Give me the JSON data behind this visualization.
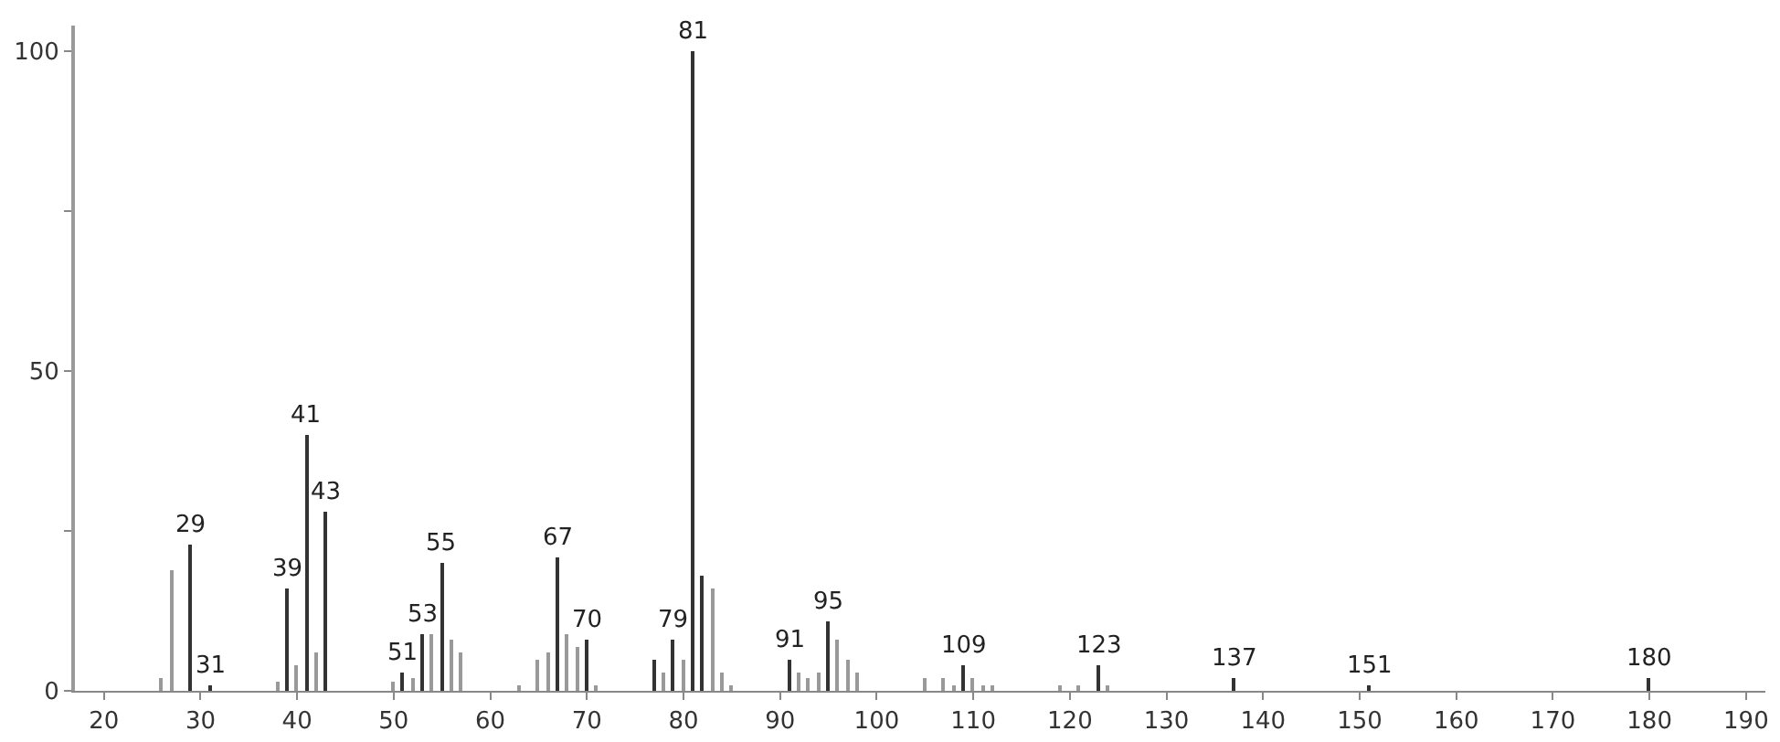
{
  "chart_data": {
    "type": "bar",
    "x": [
      26,
      27,
      29,
      31,
      38,
      39,
      40,
      41,
      42,
      43,
      50,
      51,
      52,
      53,
      54,
      55,
      56,
      57,
      63,
      65,
      66,
      67,
      68,
      69,
      70,
      71,
      77,
      78,
      79,
      80,
      81,
      82,
      83,
      84,
      85,
      91,
      92,
      93,
      94,
      95,
      96,
      97,
      98,
      105,
      107,
      108,
      109,
      110,
      111,
      112,
      119,
      121,
      123,
      124,
      137,
      151,
      180
    ],
    "values": [
      2,
      19,
      23,
      1,
      1.5,
      16,
      4,
      40,
      6,
      28,
      1.5,
      3,
      2,
      9,
      9,
      20,
      8,
      6,
      1,
      5,
      6,
      21,
      9,
      7,
      8,
      1,
      5,
      3,
      8,
      5,
      100,
      18,
      16,
      3,
      1,
      5,
      3,
      2,
      3,
      11,
      8,
      5,
      3,
      2,
      2,
      1,
      4,
      2,
      1,
      1,
      1,
      1,
      4,
      1,
      2,
      1,
      2
    ],
    "colors": [
      "#999999",
      "#999999",
      "#333333",
      "#333333",
      "#999999",
      "#333333",
      "#999999",
      "#333333",
      "#999999",
      "#333333",
      "#999999",
      "#333333",
      "#999999",
      "#333333",
      "#999999",
      "#333333",
      "#999999",
      "#999999",
      "#999999",
      "#999999",
      "#999999",
      "#333333",
      "#999999",
      "#999999",
      "#333333",
      "#999999",
      "#333333",
      "#999999",
      "#333333",
      "#999999",
      "#333333",
      "#333333",
      "#999999",
      "#999999",
      "#999999",
      "#333333",
      "#999999",
      "#999999",
      "#999999",
      "#333333",
      "#999999",
      "#999999",
      "#999999",
      "#999999",
      "#999999",
      "#999999",
      "#333333",
      "#999999",
      "#999999",
      "#999999",
      "#999999",
      "#999999",
      "#333333",
      "#999999",
      "#333333",
      "#333333",
      "#333333"
    ],
    "annotations": [
      {
        "text": "29",
        "x": 29,
        "y": 23
      },
      {
        "text": "31",
        "x": 31,
        "y": 1
      },
      {
        "text": "39",
        "x": 39,
        "y": 16
      },
      {
        "text": "41",
        "x": 41,
        "y": 40
      },
      {
        "text": "43",
        "x": 43,
        "y": 28
      },
      {
        "text": "51",
        "x": 51,
        "y": 3
      },
      {
        "text": "53",
        "x": 53,
        "y": 9
      },
      {
        "text": "55",
        "x": 55,
        "y": 20
      },
      {
        "text": "67",
        "x": 67,
        "y": 21
      },
      {
        "text": "70",
        "x": 70,
        "y": 8
      },
      {
        "text": "79",
        "x": 79,
        "y": 8
      },
      {
        "text": "81",
        "x": 81,
        "y": 100
      },
      {
        "text": "91",
        "x": 91,
        "y": 5
      },
      {
        "text": "95",
        "x": 95,
        "y": 11
      },
      {
        "text": "109",
        "x": 109,
        "y": 4
      },
      {
        "text": "123",
        "x": 123,
        "y": 4
      },
      {
        "text": "137",
        "x": 137,
        "y": 2
      },
      {
        "text": "151",
        "x": 151,
        "y": 1
      },
      {
        "text": "180",
        "x": 180,
        "y": 2
      }
    ],
    "xlim": [
      17,
      192
    ],
    "xticks": [
      20,
      30,
      40,
      50,
      60,
      70,
      80,
      90,
      100,
      110,
      120,
      130,
      140,
      150,
      160,
      170,
      180,
      190
    ],
    "ylim": [
      0,
      104
    ],
    "yticks": [
      0,
      {
        "value": 25,
        "label": null
      },
      50,
      {
        "value": 75,
        "label": null
      },
      100
    ],
    "grid": false
  }
}
